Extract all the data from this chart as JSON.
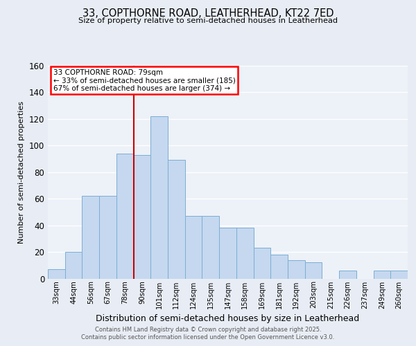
{
  "title1": "33, COPTHORNE ROAD, LEATHERHEAD, KT22 7ED",
  "title2": "Size of property relative to semi-detached houses in Leatherhead",
  "xlabel": "Distribution of semi-detached houses by size in Leatherhead",
  "ylabel": "Number of semi-detached properties",
  "categories": [
    "33sqm",
    "44sqm",
    "56sqm",
    "67sqm",
    "78sqm",
    "90sqm",
    "101sqm",
    "112sqm",
    "124sqm",
    "135sqm",
    "147sqm",
    "158sqm",
    "169sqm",
    "181sqm",
    "192sqm",
    "203sqm",
    "215sqm",
    "226sqm",
    "237sqm",
    "249sqm",
    "260sqm"
  ],
  "values": [
    7,
    20,
    62,
    62,
    94,
    93,
    122,
    89,
    47,
    47,
    38,
    38,
    23,
    18,
    14,
    12,
    0,
    6,
    0,
    6,
    6
  ],
  "bar_color": "#c5d8ef",
  "bar_edge_color": "#7aaed4",
  "vline_x_idx": 4,
  "vline_color": "#cc0000",
  "annotation_title": "33 COPTHORNE ROAD: 79sqm",
  "annotation_line1": "← 33% of semi-detached houses are smaller (185)",
  "annotation_line2": "67% of semi-detached houses are larger (374) →",
  "ylim": [
    0,
    160
  ],
  "yticks": [
    0,
    20,
    40,
    60,
    80,
    100,
    120,
    140,
    160
  ],
  "footer1": "Contains HM Land Registry data © Crown copyright and database right 2025.",
  "footer2": "Contains public sector information licensed under the Open Government Licence v3.0.",
  "bg_color": "#e8edf5",
  "plot_bg_color": "#edf1f8",
  "grid_color": "#ffffff"
}
